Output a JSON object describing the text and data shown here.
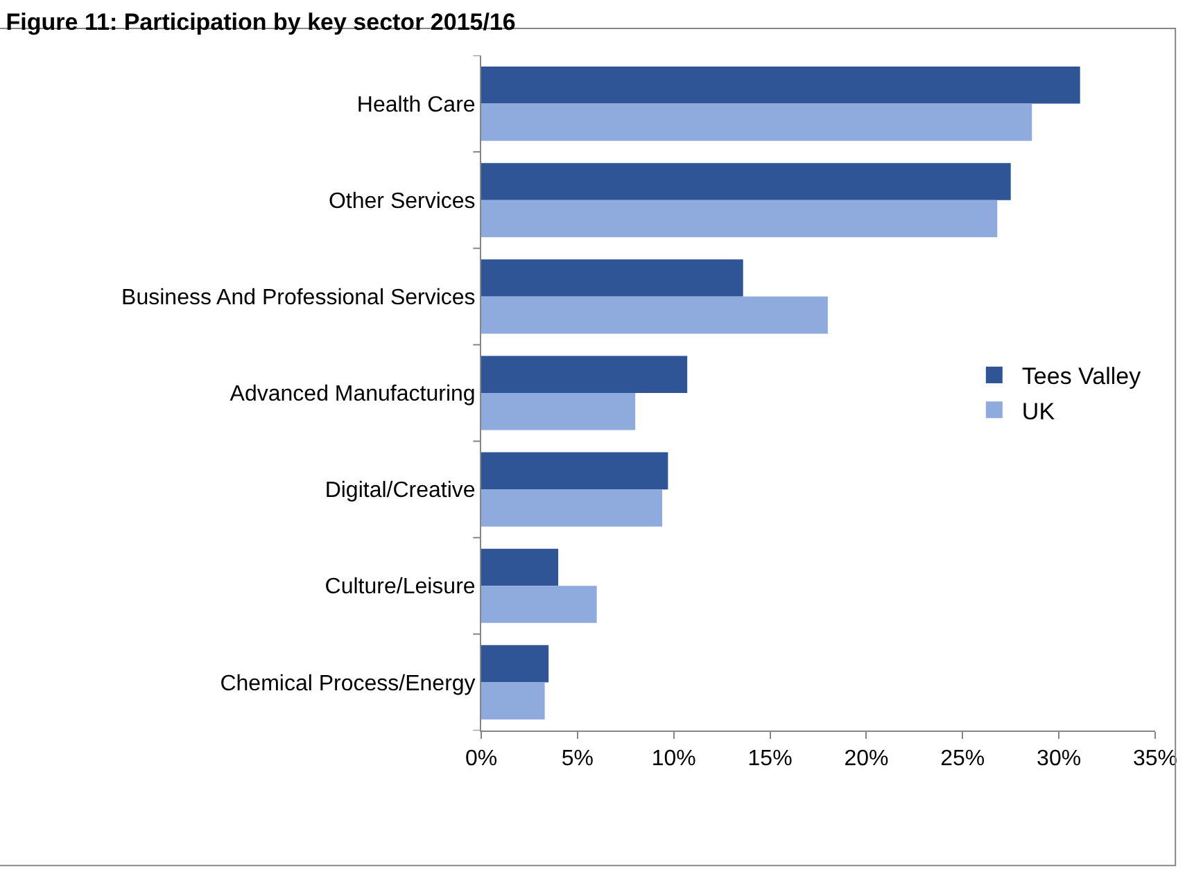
{
  "chart_data": {
    "type": "bar",
    "orientation": "horizontal",
    "title": "Figure 11: Participation by key sector 2015/16",
    "categories": [
      "Health Care",
      "Other Services",
      "Business And Professional Services",
      "Advanced Manufacturing",
      "Digital/Creative",
      "Culture/Leisure",
      "Chemical Process/Energy"
    ],
    "series": [
      {
        "name": "Tees Valley",
        "color": "#2f5597",
        "values": [
          31.1,
          27.5,
          13.6,
          10.7,
          9.7,
          4.0,
          3.5
        ]
      },
      {
        "name": "UK",
        "color": "#8faadc",
        "values": [
          28.6,
          26.8,
          18.0,
          8.0,
          9.4,
          6.0,
          3.3
        ]
      }
    ],
    "xlim": [
      0,
      35
    ],
    "xticks": [
      {
        "value": 0,
        "label": "0%"
      },
      {
        "value": 5,
        "label": "5%"
      },
      {
        "value": 10,
        "label": "10%"
      },
      {
        "value": 15,
        "label": "15%"
      },
      {
        "value": 20,
        "label": "20%"
      },
      {
        "value": 25,
        "label": "25%"
      },
      {
        "value": 30,
        "label": "30%"
      },
      {
        "value": 35,
        "label": "35%"
      }
    ],
    "grid": false,
    "legend": "right"
  }
}
